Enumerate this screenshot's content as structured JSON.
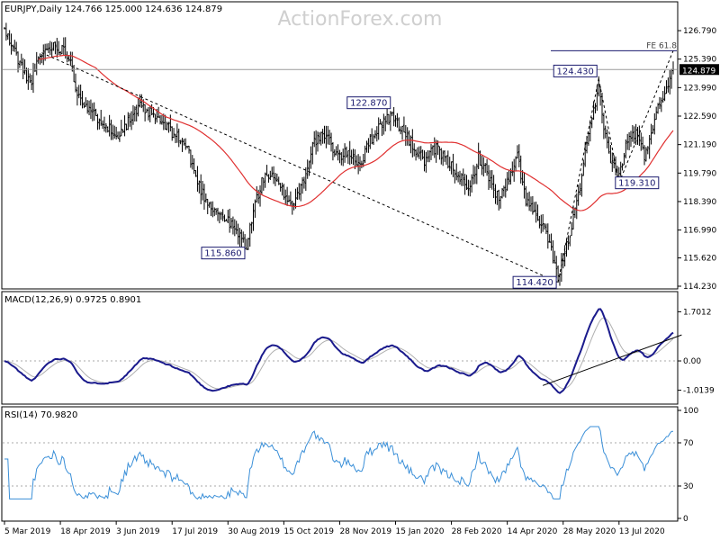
{
  "chart_data": [
    {
      "type": "candlestick",
      "panel": "price",
      "title": "EURJPY,Daily  124.766 125.000 124.636 124.879",
      "watermark": "ActionForex.com",
      "ylim": [
        114.23,
        127.5
      ],
      "yticks": [
        {
          "value": 126.79,
          "label": "126.790"
        },
        {
          "value": 125.39,
          "label": "125.390"
        },
        {
          "value": 123.99,
          "label": "123.990"
        },
        {
          "value": 122.59,
          "label": "122.590"
        },
        {
          "value": 121.19,
          "label": "121.190"
        },
        {
          "value": 119.79,
          "label": "119.790"
        },
        {
          "value": 118.39,
          "label": "118.390"
        },
        {
          "value": 116.99,
          "label": "116.990"
        },
        {
          "value": 115.62,
          "label": "115.620"
        },
        {
          "value": 114.23,
          "label": "114.230"
        }
      ],
      "current_price": {
        "value": 124.879,
        "label": "124.879"
      },
      "fe_level": {
        "value": 125.8,
        "label": "FE 61.8"
      },
      "annotations": [
        {
          "label": "115.860",
          "bar": 143,
          "value": 115.86
        },
        {
          "label": "122.870",
          "bar": 229,
          "value": 122.87
        },
        {
          "label": "114.420",
          "bar": 327,
          "value": 114.42
        },
        {
          "label": "124.430",
          "bar": 351,
          "value": 124.43
        },
        {
          "label": "119.310",
          "bar": 363,
          "value": 119.31
        }
      ],
      "trendline": {
        "from": {
          "bar": 22,
          "value": 125.7
        },
        "to": {
          "bar": 327,
          "value": 114.42
        }
      },
      "projection": [
        {
          "bar": 327,
          "value": 114.42
        },
        {
          "bar": 351,
          "value": 124.43
        },
        {
          "bar": 363,
          "value": 119.31
        },
        {
          "bar": 395,
          "value": 125.8
        }
      ],
      "ma_color": "#e03030",
      "candle_color": "#000000",
      "anchors": [
        [
          0,
          126.8
        ],
        [
          8,
          125.4
        ],
        [
          15,
          124.2
        ],
        [
          22,
          125.7
        ],
        [
          30,
          126.1
        ],
        [
          38,
          125.6
        ],
        [
          42,
          124.0
        ],
        [
          50,
          122.8
        ],
        [
          58,
          122.4
        ],
        [
          65,
          121.6
        ],
        [
          72,
          122.2
        ],
        [
          80,
          123.0
        ],
        [
          88,
          122.6
        ],
        [
          95,
          122.1
        ],
        [
          102,
          121.6
        ],
        [
          108,
          121.0
        ],
        [
          113,
          119.6
        ],
        [
          118,
          118.6
        ],
        [
          124,
          118.0
        ],
        [
          130,
          117.6
        ],
        [
          136,
          117.0
        ],
        [
          143,
          116.2
        ],
        [
          148,
          118.3
        ],
        [
          154,
          119.8
        ],
        [
          160,
          119.4
        ],
        [
          166,
          118.7
        ],
        [
          170,
          118.2
        ],
        [
          176,
          119.3
        ],
        [
          183,
          121.4
        ],
        [
          190,
          121.6
        ],
        [
          197,
          120.6
        ],
        [
          204,
          120.8
        ],
        [
          210,
          120.2
        ],
        [
          216,
          121.4
        ],
        [
          223,
          122.3
        ],
        [
          229,
          122.6
        ],
        [
          236,
          121.8
        ],
        [
          242,
          121.0
        ],
        [
          248,
          120.4
        ],
        [
          255,
          121.0
        ],
        [
          262,
          120.3
        ],
        [
          268,
          119.8
        ],
        [
          274,
          118.8
        ],
        [
          280,
          120.6
        ],
        [
          286,
          119.6
        ],
        [
          292,
          118.5
        ],
        [
          298,
          119.4
        ],
        [
          303,
          120.6
        ],
        [
          308,
          118.5
        ],
        [
          314,
          117.6
        ],
        [
          320,
          116.8
        ],
        [
          325,
          115.4
        ],
        [
          327,
          114.6
        ],
        [
          332,
          116.2
        ],
        [
          338,
          118.2
        ],
        [
          342,
          120.2
        ],
        [
          346,
          122.0
        ],
        [
          351,
          124.0
        ],
        [
          355,
          121.6
        ],
        [
          359,
          120.2
        ],
        [
          363,
          119.6
        ],
        [
          368,
          121.4
        ],
        [
          373,
          121.8
        ],
        [
          378,
          120.6
        ],
        [
          383,
          122.2
        ],
        [
          388,
          123.4
        ],
        [
          392,
          124.3
        ],
        [
          395,
          124.88
        ]
      ],
      "candles_seed": 11
    },
    {
      "type": "line",
      "panel": "macd",
      "title": "MACD(12,26,9) 0.9725 0.8901",
      "ylim": [
        -1.4,
        1.9
      ],
      "yticks": [
        {
          "value": 1.7012,
          "label": "1.7012"
        },
        {
          "value": 0.0,
          "label": "0.00"
        },
        {
          "value": -1.0139,
          "label": "-1.0139"
        }
      ],
      "line_color": "#1a1a8c",
      "signal_color": "#b0b0b0",
      "trendline": {
        "from": {
          "bar": 318,
          "value": -0.85
        },
        "to": {
          "bar": 400,
          "value": 0.9
        }
      }
    },
    {
      "type": "line",
      "panel": "rsi",
      "title": "RSI(14) 70.9820",
      "ylim": [
        0,
        100
      ],
      "yticks": [
        {
          "value": 100,
          "label": "100"
        },
        {
          "value": 70,
          "label": "70"
        },
        {
          "value": 30,
          "label": "30"
        },
        {
          "value": 0,
          "label": "0"
        }
      ],
      "line_color": "#3a8fd8"
    }
  ],
  "xaxis": {
    "bars": 396,
    "labels": [
      {
        "bar": 0,
        "label": "5 Mar 2019"
      },
      {
        "bar": 33,
        "label": "18 Apr 2019"
      },
      {
        "bar": 66,
        "label": "3 Jun 2019"
      },
      {
        "bar": 99,
        "label": "17 Jul 2019"
      },
      {
        "bar": 132,
        "label": "30 Aug 2019"
      },
      {
        "bar": 165,
        "label": "15 Oct 2019"
      },
      {
        "bar": 198,
        "label": "28 Nov 2019"
      },
      {
        "bar": 231,
        "label": "15 Jan 2020"
      },
      {
        "bar": 264,
        "label": "28 Feb 2020"
      },
      {
        "bar": 297,
        "label": "14 Apr 2020"
      },
      {
        "bar": 330,
        "label": "28 May 2020"
      },
      {
        "bar": 363,
        "label": "13 Jul 2020"
      }
    ]
  }
}
